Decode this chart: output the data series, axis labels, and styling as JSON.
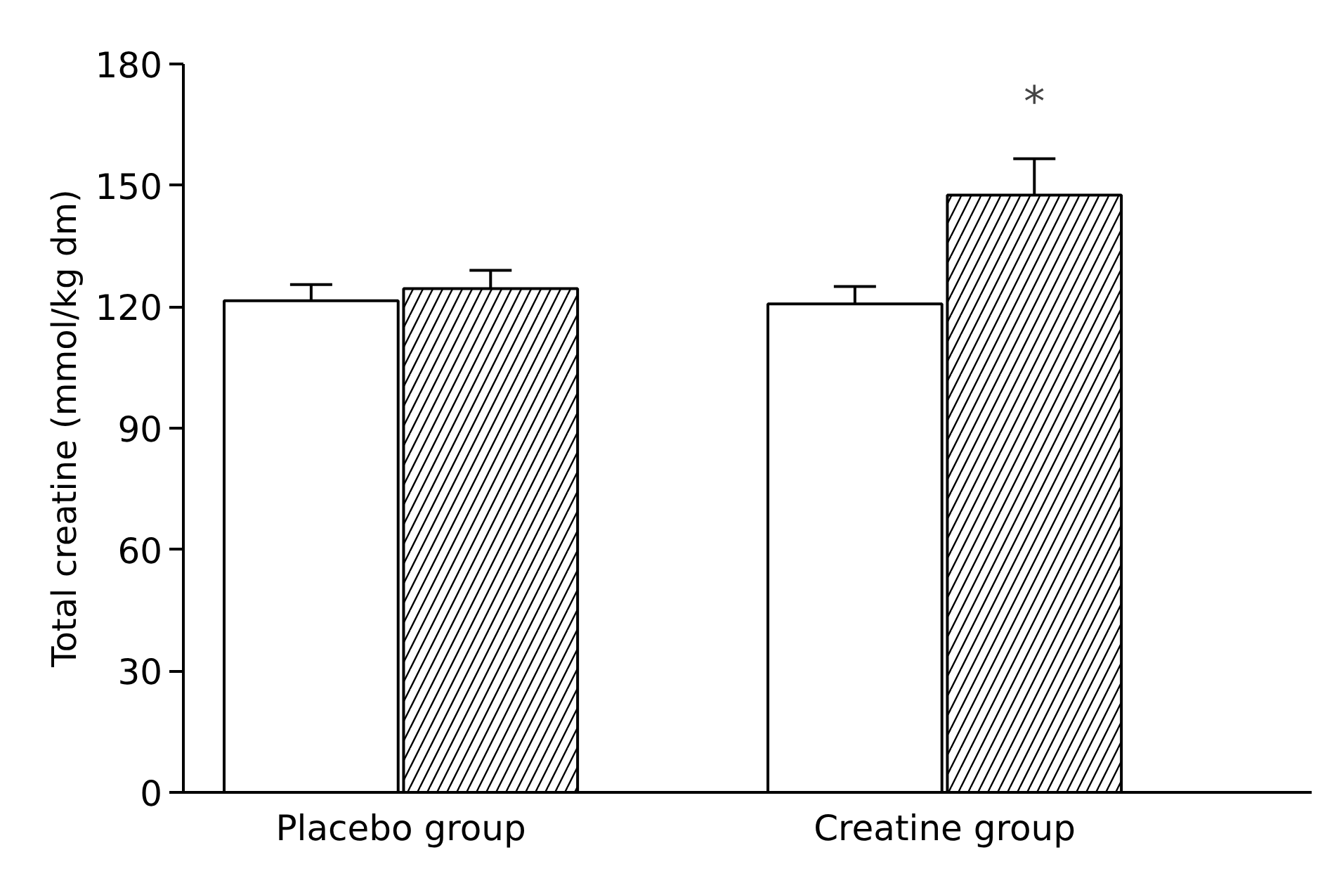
{
  "chart_data": {
    "type": "bar",
    "ylabel": "Total creatine (mmol/kg dm)",
    "categories": [
      "Placebo group",
      "Creatine group"
    ],
    "series": [
      {
        "color": "#ffffff",
        "values": [
          121.5,
          120.7
        ],
        "errors": [
          4,
          4.3
        ]
      },
      {
        "color": "#000000",
        "values": [
          124.5,
          147.6
        ],
        "errors": [
          4.5,
          9
        ]
      }
    ],
    "ylim": [
      0,
      180
    ],
    "yticks": [
      0,
      30,
      60,
      90,
      120,
      150,
      180
    ],
    "grid": false,
    "annotations": [
      "*"
    ]
  }
}
